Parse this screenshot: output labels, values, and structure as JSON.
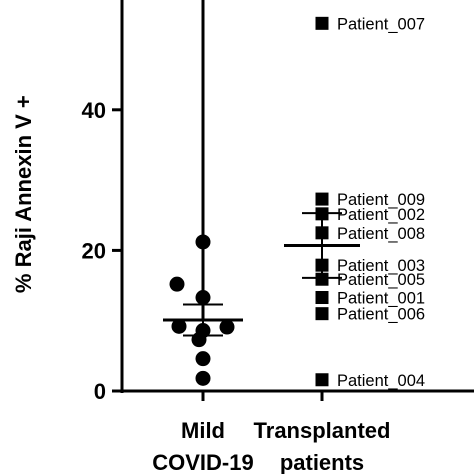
{
  "chart_data": {
    "type": "scatter",
    "ylabel": "% Raji Annexin V +",
    "ylim": [
      0,
      56
    ],
    "yticks": [
      0,
      20,
      40
    ],
    "categories": [
      "Mild COVID-19",
      "Transplanted patients"
    ],
    "category_label_lines": [
      [
        "Mild",
        "COVID-19"
      ],
      [
        "Transplanted",
        "patients"
      ]
    ],
    "series": [
      {
        "category": "Mild COVID-19",
        "marker": "circle",
        "values": [
          21.2,
          15.2,
          13.3,
          9.2,
          9.1,
          8.6,
          7.3,
          4.6,
          1.8
        ],
        "mean": 10.1,
        "sem_low": 7.9,
        "sem_high": 12.3,
        "whisker_top": 56
      },
      {
        "category": "Transplanted patients",
        "marker": "square",
        "mean": 20.7,
        "sem_low": 16.1,
        "sem_high": 25.3,
        "points": [
          {
            "label": "Patient_007",
            "value": 52.3
          },
          {
            "label": "Patient_009",
            "value": 27.3
          },
          {
            "label": "Patient_002",
            "value": 25.2
          },
          {
            "label": "Patient_008",
            "value": 22.5
          },
          {
            "label": "Patient_003",
            "value": 17.9
          },
          {
            "label": "Patient_005",
            "value": 15.9
          },
          {
            "label": "Patient_001",
            "value": 13.3
          },
          {
            "label": "Patient_006",
            "value": 11.0
          },
          {
            "label": "Patient_004",
            "value": 1.6
          }
        ]
      }
    ],
    "grid": false,
    "legend": "none",
    "colors": {
      "marker": "#000000",
      "axis": "#000000"
    }
  }
}
